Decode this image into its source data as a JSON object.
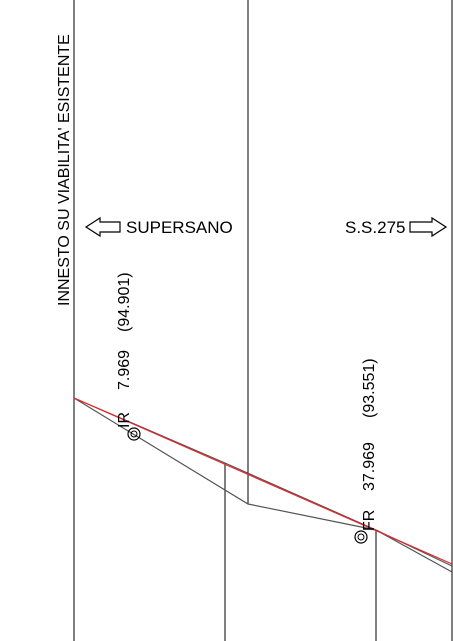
{
  "labels": {
    "vertical_title": "INNESTO SU VIABILITA' ESISTENTE",
    "left_direction": "SUPERSANO",
    "right_direction": "S.S.275"
  },
  "points": [
    {
      "tag": "IR",
      "progressive": "7.969",
      "elevation": "(94.901)"
    },
    {
      "tag": "FR",
      "progressive": "37.969",
      "elevation": "(93.551)"
    }
  ],
  "colors": {
    "lines": "#000000",
    "grade_line": "#e8262b",
    "existing_profile": "#555555"
  }
}
